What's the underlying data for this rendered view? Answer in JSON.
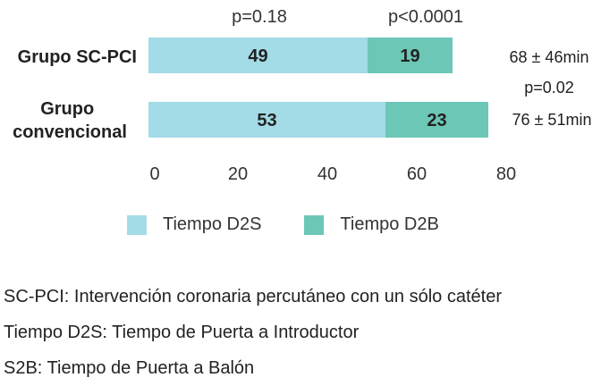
{
  "chart_data": {
    "type": "bar",
    "stacked": true,
    "orientation": "horizontal",
    "categories": [
      "Grupo SC-PCI",
      "Grupo convencional"
    ],
    "series": [
      {
        "name": "Tiempo D2S",
        "values": [
          49,
          53
        ],
        "color": "#a3dbe6"
      },
      {
        "name": "Tiempo D2B",
        "values": [
          19,
          23
        ],
        "color": "#6cc7b6"
      }
    ],
    "xlim": [
      0,
      80
    ],
    "xticks": [
      0,
      20,
      40,
      60,
      80
    ],
    "grid": false,
    "legend_position": "bottom",
    "annotations": {
      "pvalue_d2s": "p=0.18",
      "pvalue_d2b": "p<0.0001",
      "pvalue_total": "p=0.02",
      "total_sc_pci": "68 ± 46min",
      "total_convencional": "76 ± 51min"
    }
  },
  "notes": [
    "SC-PCI: Intervención coronaria percutáneo con un sólo catéter",
    "Tiempo D2S: Tiempo de Puerta a Introductor",
    "S2B: Tiempo de Puerta a Balón"
  ]
}
